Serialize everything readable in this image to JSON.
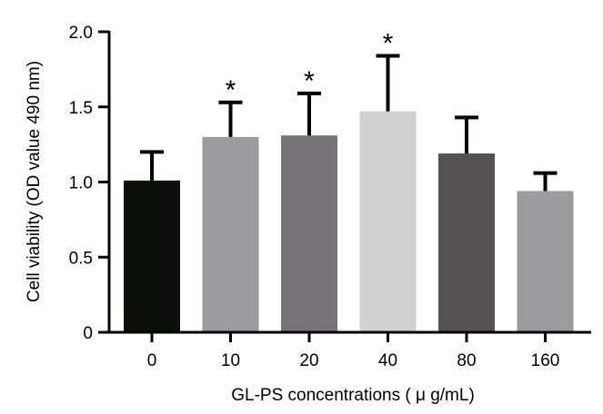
{
  "chart_data": {
    "type": "bar",
    "xlabel": "GL-PS concentrations ( μ g/mL)",
    "ylabel": "Cell viability (OD value 490 nm)",
    "ylim": [
      0,
      2.0
    ],
    "yticks": [
      "0",
      "0.5",
      "1.0",
      "1.5",
      "2.0"
    ],
    "categories": [
      "0",
      "10",
      "20",
      "40",
      "80",
      "160"
    ],
    "values": [
      1.01,
      1.3,
      1.31,
      1.47,
      1.19,
      0.94
    ],
    "error_upper": [
      0.19,
      0.23,
      0.28,
      0.37,
      0.24,
      0.12
    ],
    "significance": [
      "",
      "*",
      "*",
      "*",
      "",
      ""
    ],
    "colors": [
      "#0d0f0d",
      "#9b9a9c",
      "#777477",
      "#d2d2d3",
      "#545152",
      "#9b9a9c"
    ],
    "grid": false,
    "legend": "none"
  }
}
